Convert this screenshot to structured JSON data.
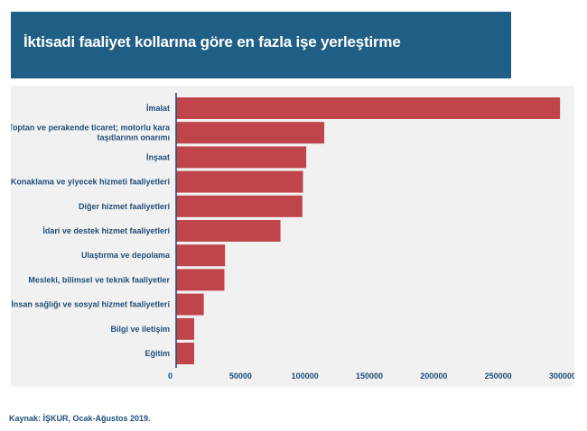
{
  "header": {
    "title": "İktisadi faaliyet kollarına göre en fazla işe yerleştirme"
  },
  "footer": {
    "source": "Kaynak: İŞKUR, Ocak-Ağustos 2019."
  },
  "colors": {
    "title_bg": "#1f5f86",
    "bar": "#c0454b",
    "label": "#1f4e79",
    "panel_bg": "#f1f1f1"
  },
  "chart_data": {
    "type": "bar",
    "orientation": "horizontal",
    "title": "",
    "xlabel": "",
    "ylabel": "",
    "xlim": [
      0,
      300000
    ],
    "grid": false,
    "categories": [
      "İmalat",
      [
        "Toptan ve perakende ticaret; motorlu kara",
        "taşıtlarının onarımı"
      ],
      "İnşaat",
      "Konaklama ve yiyecek hizmeti faaliyetleri",
      "Diğer hizmet faaliyetleri",
      "İdari ve destek hizmet faaliyetleri",
      "Ulaştırma ve depolama",
      "Mesleki, bilimsel ve teknik faaliyetler",
      "İnsan sağlığı ve sosyal hizmet faaliyetleri",
      "Bilgi ve iletişim",
      "Eğitim"
    ],
    "values": [
      298000,
      115000,
      101000,
      98500,
      98000,
      81000,
      38000,
      37500,
      21500,
      14000,
      14000
    ],
    "ticks": [
      0,
      50000,
      100000,
      150000,
      200000,
      250000,
      300000
    ],
    "tick_labels": [
      "0",
      "50000",
      "100000",
      "150000",
      "200000",
      "250000",
      "300000"
    ]
  }
}
